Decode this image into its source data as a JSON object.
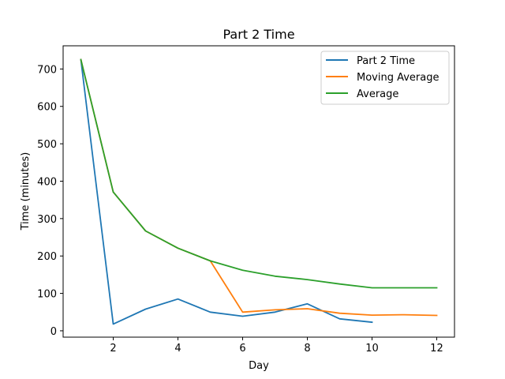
{
  "chart_data": {
    "type": "line",
    "title": "Part 2 Time",
    "xlabel": "Day",
    "ylabel": "Time (minutes)",
    "xlim": [
      0.45,
      12.55
    ],
    "ylim": [
      -17,
      762
    ],
    "xticks": [
      2,
      4,
      6,
      8,
      10,
      12
    ],
    "yticks": [
      0,
      100,
      200,
      300,
      400,
      500,
      600,
      700
    ],
    "grid": false,
    "legend_position": "top-right",
    "series": [
      {
        "name": "Part 2 Time",
        "color": "#1f77b4",
        "x": [
          1,
          2,
          3,
          4,
          5,
          6,
          7,
          8,
          9,
          10
        ],
        "y": [
          725,
          18,
          58,
          85,
          50,
          39,
          50,
          72,
          32,
          23
        ]
      },
      {
        "name": "Moving Average",
        "color": "#ff7f0e",
        "x": [
          1,
          2,
          3,
          4,
          5,
          6,
          7,
          8,
          9,
          10,
          11,
          12
        ],
        "y": [
          725,
          371,
          267,
          221,
          187,
          50,
          56,
          59,
          47,
          42,
          43,
          41
        ]
      },
      {
        "name": "Average",
        "color": "#2ca02c",
        "x": [
          1,
          2,
          3,
          4,
          5,
          6,
          7,
          8,
          9,
          10,
          11,
          12
        ],
        "y": [
          725,
          371,
          267,
          221,
          187,
          162,
          146,
          137,
          125,
          115,
          115,
          115
        ]
      }
    ]
  }
}
